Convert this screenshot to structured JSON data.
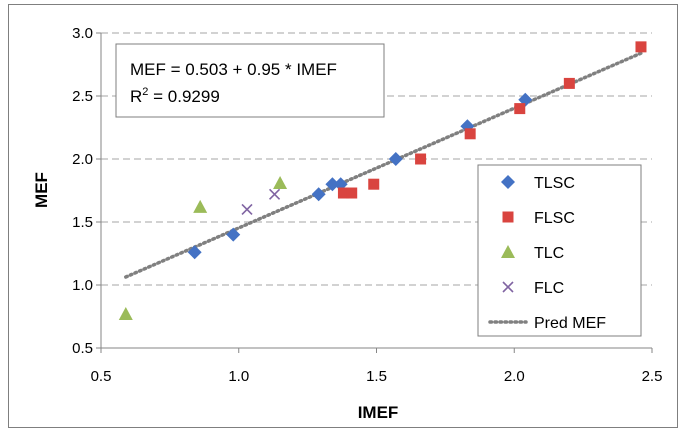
{
  "chart_data": {
    "type": "scatter",
    "xlabel": "IMEF",
    "ylabel": "MEF",
    "xlim": [
      0.5,
      2.5
    ],
    "ylim": [
      0.5,
      3.0
    ],
    "xticks": [
      "0.5",
      "1.0",
      "1.5",
      "2.0",
      "2.5"
    ],
    "yticks": [
      "0.5",
      "1.0",
      "1.5",
      "2.0",
      "2.5",
      "3.0"
    ],
    "grid": "horizontal dashed",
    "legend_position": "right",
    "annotation": {
      "equation": "MEF = 0.503 + 0.95 * IMEF",
      "r2_label": "R",
      "r2_sup": "2",
      "r2_value": " = 0.9299"
    },
    "series": [
      {
        "name": "TLSC",
        "marker": "diamond",
        "color": "#4472c4",
        "points": [
          [
            0.84,
            1.26
          ],
          [
            0.98,
            1.4
          ],
          [
            1.29,
            1.72
          ],
          [
            1.34,
            1.8
          ],
          [
            1.37,
            1.8
          ],
          [
            1.57,
            2.0
          ],
          [
            1.83,
            2.26
          ],
          [
            2.04,
            2.47
          ]
        ]
      },
      {
        "name": "FLSC",
        "marker": "square",
        "color": "#d9443f",
        "points": [
          [
            1.38,
            1.73
          ],
          [
            1.41,
            1.73
          ],
          [
            1.49,
            1.8
          ],
          [
            1.66,
            2.0
          ],
          [
            1.84,
            2.2
          ],
          [
            2.02,
            2.4
          ],
          [
            2.2,
            2.6
          ],
          [
            2.46,
            2.89
          ]
        ]
      },
      {
        "name": "TLC",
        "marker": "triangle",
        "color": "#9bbb59",
        "points": [
          [
            0.59,
            0.77
          ],
          [
            0.86,
            1.62
          ],
          [
            1.15,
            1.81
          ]
        ]
      },
      {
        "name": "FLC",
        "marker": "x",
        "color": "#8064a2",
        "points": [
          [
            1.03,
            1.6
          ],
          [
            1.13,
            1.72
          ]
        ]
      },
      {
        "name": "Pred MEF",
        "marker": "dotted-line",
        "color": "#808080",
        "line": {
          "x": [
            0.59,
            2.46
          ],
          "intercept": 0.503,
          "slope": 0.95
        }
      }
    ]
  }
}
